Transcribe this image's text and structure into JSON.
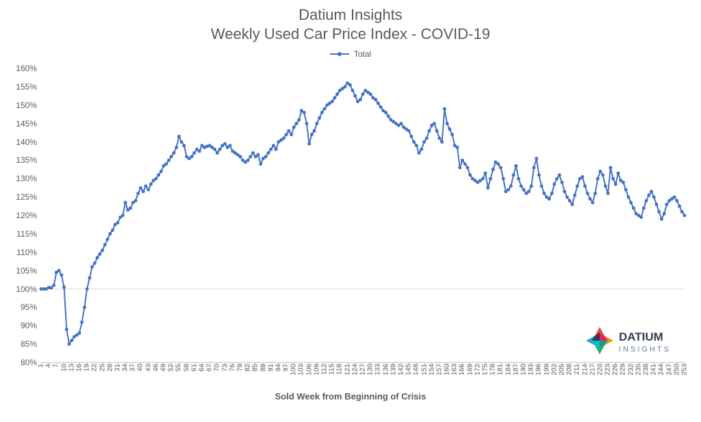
{
  "chart": {
    "type": "line",
    "title_line1": "Datium Insights",
    "title_line2": "Weekly Used Car Price Index - COVID-19",
    "title_fontsize": 22,
    "legend": {
      "label": "Total",
      "color": "#4472c4"
    },
    "xlabel": "Sold Week from Beginning of Crisis",
    "xlabel_fontsize": 13,
    "ylabel_fontsize": 12,
    "xlim": [
      1,
      253
    ],
    "ylim": [
      80,
      160
    ],
    "ytick_step": 5,
    "yticks": [
      "80%",
      "85%",
      "90%",
      "95%",
      "100%",
      "105%",
      "110%",
      "115%",
      "120%",
      "125%",
      "130%",
      "135%",
      "140%",
      "145%",
      "150%",
      "155%",
      "160%"
    ],
    "xtick_step": 3,
    "background_color": "#ffffff",
    "grid_color": "#d9d9d9",
    "axis_color": "#bfbfbf",
    "baseline_color": "#d9d9d9",
    "text_color": "#595959",
    "line_color": "#4472c4",
    "line_width": 2,
    "marker": {
      "shape": "circle",
      "radius": 2.5,
      "fill": "#4472c4",
      "stroke": "#4472c4"
    },
    "series": {
      "name": "Total",
      "values": [
        100.0,
        100.0,
        100.0,
        100.4,
        100.3,
        101.0,
        104.5,
        105.0,
        103.8,
        100.5,
        89.0,
        85.0,
        86.0,
        87.0,
        87.5,
        88.0,
        91.0,
        95.0,
        100.0,
        103.0,
        106.0,
        107.0,
        108.5,
        109.5,
        110.5,
        112.0,
        113.5,
        115.0,
        116.0,
        117.5,
        118.0,
        119.5,
        120.0,
        123.5,
        121.5,
        122.0,
        123.5,
        124.0,
        126.0,
        127.5,
        126.5,
        128.0,
        127.0,
        128.5,
        129.5,
        130.0,
        131.0,
        132.0,
        133.5,
        134.0,
        135.0,
        136.0,
        137.0,
        138.5,
        141.5,
        140.0,
        139.0,
        136.0,
        135.5,
        136.0,
        137.0,
        138.0,
        137.5,
        139.0,
        138.5,
        138.8,
        139.0,
        138.5,
        138.0,
        137.0,
        138.0,
        139.0,
        139.5,
        138.5,
        139.0,
        137.5,
        137.0,
        136.5,
        136.0,
        135.0,
        134.5,
        135.0,
        136.0,
        137.0,
        136.0,
        136.5,
        134.0,
        135.5,
        136.0,
        137.0,
        138.0,
        139.0,
        138.0,
        140.0,
        140.5,
        141.0,
        142.0,
        143.0,
        142.0,
        144.0,
        145.0,
        146.0,
        148.5,
        148.0,
        145.0,
        139.5,
        142.0,
        143.0,
        145.0,
        146.5,
        148.0,
        149.0,
        150.0,
        150.5,
        151.0,
        152.0,
        153.0,
        154.0,
        154.5,
        155.0,
        156.0,
        155.5,
        154.0,
        152.5,
        151.0,
        151.5,
        153.0,
        154.0,
        153.5,
        153.0,
        152.0,
        151.5,
        150.5,
        149.5,
        148.5,
        148.0,
        147.0,
        146.0,
        145.5,
        145.0,
        144.5,
        145.0,
        144.0,
        143.5,
        143.0,
        141.5,
        140.0,
        139.0,
        137.0,
        138.0,
        140.0,
        141.0,
        143.0,
        144.5,
        145.0,
        143.0,
        141.0,
        140.0,
        149.0,
        145.0,
        143.5,
        142.0,
        139.0,
        138.5,
        133.0,
        135.0,
        134.0,
        133.0,
        131.0,
        130.0,
        129.5,
        129.0,
        129.5,
        130.0,
        131.5,
        127.5,
        130.0,
        132.5,
        134.5,
        134.0,
        133.0,
        130.0,
        126.5,
        127.0,
        128.0,
        131.0,
        133.5,
        130.0,
        128.0,
        127.0,
        126.0,
        126.5,
        128.0,
        133.0,
        135.5,
        131.0,
        128.0,
        126.0,
        125.0,
        124.5,
        126.0,
        128.5,
        130.0,
        131.0,
        129.0,
        126.5,
        125.0,
        124.0,
        123.0,
        125.5,
        128.0,
        130.0,
        130.5,
        128.0,
        126.0,
        124.5,
        123.5,
        126.0,
        130.0,
        132.0,
        131.0,
        128.0,
        126.0,
        133.0,
        130.0,
        128.5,
        131.5,
        129.5,
        129.0,
        127.0,
        125.0,
        123.5,
        122.0,
        120.5,
        120.0,
        119.5,
        122.0,
        124.0,
        125.5,
        126.5,
        125.0,
        123.0,
        121.0,
        119.0,
        120.5,
        123.0,
        124.0,
        124.5,
        125.0,
        124.0,
        122.5,
        121.0,
        120.0
      ]
    }
  },
  "logo": {
    "brand_top": "DATIUM",
    "brand_bottom": "INSIGHTS",
    "diamond_colors": [
      "#e74c3c",
      "#f39c12",
      "#27ae60",
      "#16a085",
      "#3498db",
      "#2c3e50",
      "#00bcd4",
      "#e91e63"
    ],
    "text_color": "#2c3e50"
  }
}
